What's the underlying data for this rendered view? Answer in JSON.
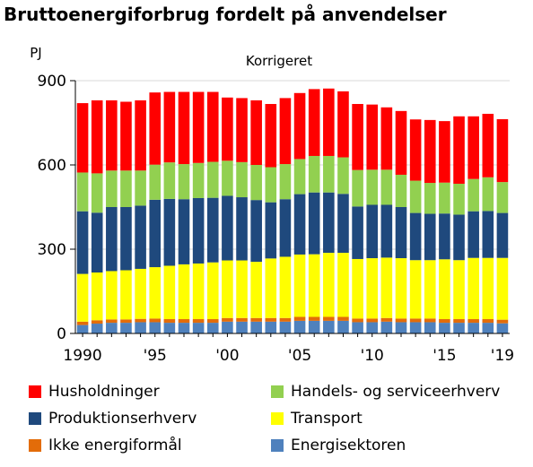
{
  "chart_data": {
    "type": "bar",
    "stacked": true,
    "title": "Bruttoenergiforbrug fordelt på anvendelser",
    "subtitle": "Korrigeret",
    "ylabel": "PJ",
    "ylim": [
      0,
      900
    ],
    "yticks": [
      0,
      300,
      600,
      900
    ],
    "years": [
      1990,
      1991,
      1992,
      1993,
      1994,
      1995,
      1996,
      1997,
      1998,
      1999,
      2000,
      2001,
      2002,
      2003,
      2004,
      2005,
      2006,
      2007,
      2008,
      2009,
      2010,
      2011,
      2012,
      2013,
      2014,
      2015,
      2016,
      2017,
      2018,
      2019
    ],
    "xtick_labels": [
      {
        "year": 1990,
        "label": "1990"
      },
      {
        "year": 1995,
        "label": "'95"
      },
      {
        "year": 2000,
        "label": "'00"
      },
      {
        "year": 2005,
        "label": "'05"
      },
      {
        "year": 2010,
        "label": "'10"
      },
      {
        "year": 2015,
        "label": "'15"
      },
      {
        "year": 2019,
        "label": "'19"
      }
    ],
    "series": [
      {
        "name": "Energisektoren",
        "color": "#4F81BD",
        "values": [
          30,
          35,
          38,
          38,
          40,
          40,
          38,
          38,
          38,
          38,
          42,
          42,
          42,
          42,
          42,
          45,
          45,
          45,
          45,
          40,
          40,
          42,
          40,
          40,
          40,
          38,
          38,
          38,
          38,
          36
        ]
      },
      {
        "name": "Ikke energiformål",
        "color": "#E36C09",
        "values": [
          12,
          12,
          12,
          12,
          12,
          13,
          13,
          13,
          13,
          13,
          13,
          13,
          13,
          13,
          13,
          14,
          14,
          14,
          14,
          13,
          13,
          13,
          13,
          13,
          13,
          13,
          13,
          13,
          13,
          13
        ]
      },
      {
        "name": "Transport",
        "color": "#FFFF00",
        "values": [
          170,
          170,
          172,
          175,
          178,
          183,
          190,
          195,
          198,
          202,
          205,
          205,
          200,
          212,
          218,
          222,
          223,
          228,
          228,
          212,
          215,
          215,
          215,
          208,
          208,
          213,
          210,
          218,
          218,
          220
        ]
      },
      {
        "name": "Produktionserhverv",
        "color": "#1F497D",
        "values": [
          223,
          213,
          228,
          225,
          225,
          240,
          238,
          232,
          233,
          230,
          230,
          225,
          220,
          200,
          205,
          215,
          220,
          215,
          210,
          187,
          190,
          188,
          182,
          168,
          165,
          163,
          162,
          166,
          167,
          160
        ]
      },
      {
        "name": "Handels- og serviceerhverv",
        "color": "#92D050",
        "values": [
          138,
          140,
          130,
          130,
          125,
          125,
          130,
          125,
          125,
          128,
          125,
          125,
          125,
          125,
          125,
          125,
          130,
          130,
          130,
          130,
          125,
          125,
          115,
          115,
          110,
          110,
          110,
          115,
          120,
          110
        ]
      },
      {
        "name": "Husholdninger",
        "color": "#FF0000",
        "values": [
          247,
          260,
          250,
          245,
          250,
          257,
          251,
          257,
          253,
          249,
          225,
          228,
          230,
          225,
          235,
          235,
          238,
          240,
          235,
          235,
          232,
          222,
          227,
          218,
          224,
          219,
          240,
          223,
          226,
          224
        ]
      }
    ],
    "legend": [
      {
        "name": "Husholdninger",
        "color": "#FF0000"
      },
      {
        "name": "Handels- og serviceerhverv",
        "color": "#92D050"
      },
      {
        "name": "Produktionserhverv",
        "color": "#1F497D"
      },
      {
        "name": "Transport",
        "color": "#FFFF00"
      },
      {
        "name": "Ikke energiformål",
        "color": "#E36C09"
      },
      {
        "name": "Energisektoren",
        "color": "#4F81BD"
      }
    ]
  }
}
